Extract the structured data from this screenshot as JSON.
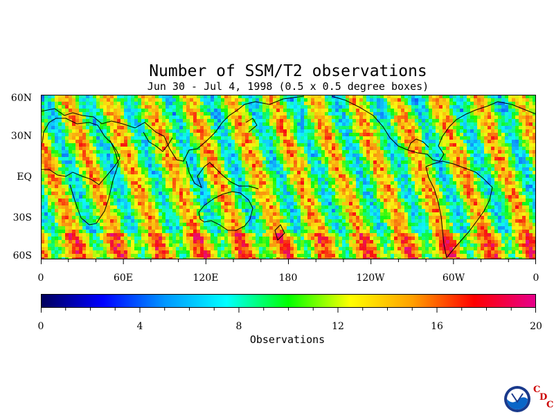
{
  "title": "Number of SSM/T2 observations",
  "subtitle": "Jun 30 - Jul 4, 1998 (0.5 x 0.5 degree boxes)",
  "map": {
    "lat_labels": [
      "60N",
      "30N",
      "EQ",
      "30S",
      "60S"
    ],
    "lon_labels": [
      "0",
      "60E",
      "120E",
      "180",
      "120W",
      "60W",
      "0"
    ],
    "lat_range": [
      -60,
      60
    ],
    "lon_range": [
      0,
      360
    ],
    "projection": "cylindrical equidistant"
  },
  "colorbar": {
    "title": "Observations",
    "range": [
      0,
      20
    ],
    "ticks": [
      "0",
      "4",
      "8",
      "12",
      "16",
      "20"
    ],
    "colors": [
      "#00005a",
      "#0000ff",
      "#0096ff",
      "#00ffff",
      "#00ff00",
      "#ffff00",
      "#ffa000",
      "#ff0000",
      "#e6008c"
    ]
  },
  "logo": {
    "icon": "noaa-logo-icon",
    "letters": [
      "C",
      "D",
      "C"
    ]
  }
}
